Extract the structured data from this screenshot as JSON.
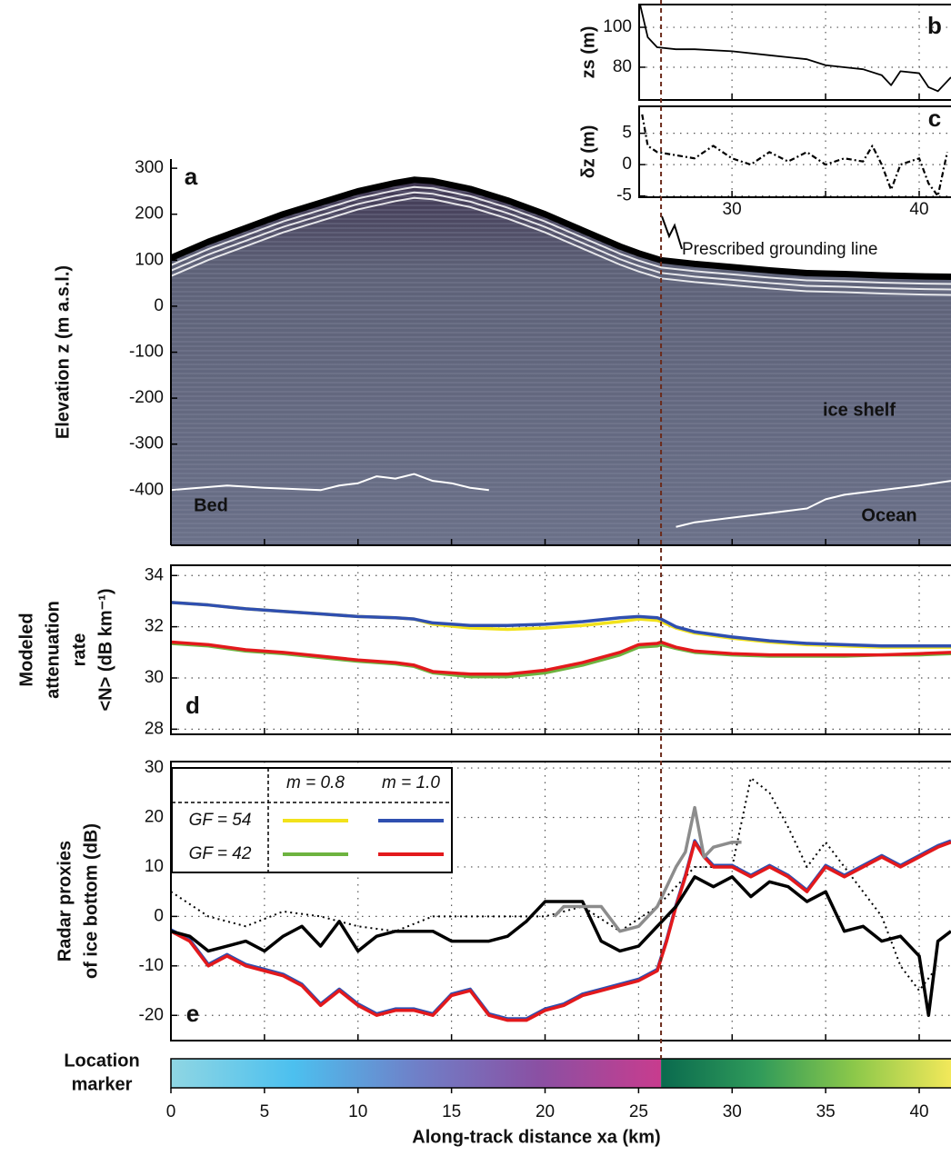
{
  "chart_data": [
    {
      "type": "line",
      "ylabel": "Elevation z (m a.s.l.)",
      "panel_label": "a",
      "annotations": [
        "Bed",
        "ice shelf",
        "Ocean"
      ],
      "xlim": [
        0,
        41.7
      ],
      "ylim": [
        -520,
        320
      ],
      "xticks": [
        5,
        10,
        15,
        20,
        25,
        30,
        35,
        40
      ],
      "yticks": [
        -400,
        -300,
        -200,
        -100,
        0,
        100,
        200,
        300
      ],
      "radargram": true,
      "series": [
        {
          "color": "#000000",
          "style": "thick",
          "x": [
            0,
            2,
            4,
            6,
            8,
            10,
            12,
            13,
            14,
            16,
            18,
            20,
            22,
            24,
            25,
            26.2,
            28,
            30,
            32,
            34,
            36,
            38,
            40,
            41.7
          ],
          "values": [
            105,
            140,
            170,
            200,
            225,
            250,
            268,
            275,
            272,
            255,
            230,
            200,
            165,
            130,
            115,
            100,
            92,
            85,
            78,
            72,
            70,
            67,
            65,
            64
          ]
        },
        {
          "color": "#ffffff",
          "style": "thin",
          "x": [
            0,
            3,
            5,
            8,
            9,
            10,
            11,
            12,
            13,
            14,
            15,
            16,
            17
          ],
          "values": [
            -400,
            -390,
            -395,
            -400,
            -390,
            -385,
            -370,
            -375,
            -365,
            -380,
            -385,
            -395,
            -400
          ]
        },
        {
          "color": "#ffffff",
          "style": "thin",
          "x": [
            27,
            28,
            30,
            32,
            34,
            35,
            36,
            38,
            40,
            41.7
          ],
          "values": [
            -480,
            -470,
            -460,
            -450,
            -440,
            -420,
            -410,
            -400,
            -390,
            -380
          ]
        }
      ]
    },
    {
      "type": "line",
      "ylabel": "zs (m)",
      "panel_label": "b",
      "xlim": [
        25.04,
        41.7
      ],
      "ylim": [
        63.6,
        111.4
      ],
      "xticks": [
        30,
        35,
        40
      ],
      "yticks": [
        80,
        100
      ],
      "grid": true,
      "series": [
        {
          "color": "#000000",
          "style": "normal",
          "x": [
            25.1,
            25.5,
            26,
            27,
            28,
            30,
            32,
            33,
            34,
            35,
            36,
            37,
            38,
            38.5,
            39,
            40,
            40.5,
            41,
            41.7
          ],
          "values": [
            111,
            95,
            90,
            89,
            89,
            88,
            86,
            85,
            84,
            81,
            80,
            79,
            76,
            71,
            78,
            77,
            70,
            68,
            75
          ]
        }
      ]
    },
    {
      "type": "line",
      "ylabel": "δz (m)",
      "panel_label": "c",
      "xlim": [
        25.04,
        41.7
      ],
      "ylim": [
        -5.2,
        9.3
      ],
      "xticks": [
        30,
        {
          "value": 35,
          "label": null
        },
        40
      ],
      "yticks": [
        -5,
        0,
        5
      ],
      "grid": true,
      "series": [
        {
          "color": "#000000",
          "style": "dashdot",
          "x": [
            25.2,
            25.5,
            26,
            27,
            28,
            29,
            30,
            31,
            32,
            33,
            34,
            35,
            36,
            37,
            37.5,
            38,
            38.5,
            39,
            40,
            40.5,
            41,
            41.5
          ],
          "values": [
            8,
            3,
            2,
            1.5,
            1,
            3,
            1,
            0,
            2,
            0.5,
            2,
            0,
            1,
            0.5,
            3,
            0,
            -4,
            0,
            1,
            -3,
            -5,
            2
          ]
        }
      ]
    },
    {
      "type": "line",
      "ylabel": [
        "Modeled",
        "attenuation",
        "rate",
        "<N> (dB km⁻¹)"
      ],
      "panel_label": "d",
      "xlim": [
        0,
        41.7
      ],
      "ylim": [
        27.8,
        34.4
      ],
      "xticks": [
        5,
        10,
        15,
        20,
        25,
        30,
        35,
        40
      ],
      "yticks": [
        28,
        30,
        32,
        34
      ],
      "grid": true,
      "x": [
        0,
        2,
        4,
        6,
        8,
        10,
        12,
        13,
        14,
        16,
        18,
        20,
        22,
        24,
        25,
        26,
        26.2,
        27,
        28,
        30,
        32,
        34,
        36,
        38,
        40,
        41.7
      ],
      "series": [
        {
          "color": "#f2e21b",
          "style": "thick",
          "values": [
            32.95,
            32.85,
            32.7,
            32.6,
            32.5,
            32.4,
            32.35,
            32.3,
            32.1,
            31.95,
            31.9,
            31.95,
            32.05,
            32.2,
            32.3,
            32.25,
            32.2,
            31.95,
            31.75,
            31.55,
            31.4,
            31.3,
            31.25,
            31.2,
            31.2,
            31.2
          ]
        },
        {
          "color": "#2f4fb0",
          "style": "thick",
          "values": [
            32.95,
            32.85,
            32.7,
            32.6,
            32.5,
            32.4,
            32.35,
            32.3,
            32.15,
            32.05,
            32.05,
            32.1,
            32.2,
            32.35,
            32.4,
            32.35,
            32.3,
            32.0,
            31.8,
            31.6,
            31.45,
            31.35,
            31.3,
            31.25,
            31.25,
            31.25
          ]
        },
        {
          "color": "#6db33f",
          "style": "thick",
          "values": [
            31.35,
            31.25,
            31.05,
            30.95,
            30.8,
            30.65,
            30.55,
            30.45,
            30.2,
            30.05,
            30.05,
            30.2,
            30.5,
            30.9,
            31.2,
            31.25,
            31.3,
            31.15,
            31.0,
            30.9,
            30.85,
            30.85,
            30.85,
            30.9,
            30.9,
            30.95
          ]
        },
        {
          "color": "#e3191c",
          "style": "thick",
          "values": [
            31.4,
            31.3,
            31.1,
            31.0,
            30.85,
            30.7,
            30.6,
            30.5,
            30.25,
            30.15,
            30.15,
            30.3,
            30.6,
            31.0,
            31.3,
            31.35,
            31.4,
            31.2,
            31.05,
            30.95,
            30.9,
            30.9,
            30.9,
            30.9,
            30.95,
            31.0
          ]
        }
      ]
    },
    {
      "type": "line",
      "ylabel": [
        "Radar proxies",
        "of ice bottom (dB)"
      ],
      "panel_label": "e",
      "legend": {
        "columns": [
          "m = 0.8",
          "m = 1.0"
        ],
        "rows": [
          "GF = 54",
          "GF = 42"
        ]
      },
      "xlim": [
        0,
        41.7
      ],
      "ylim": [
        -25.1,
        31.3
      ],
      "xticks": [
        5,
        10,
        15,
        20,
        25,
        30,
        35,
        40
      ],
      "yticks": [
        -20,
        -10,
        0,
        10,
        20,
        30
      ],
      "grid": true,
      "series": [
        {
          "color": "#000000",
          "style": "dotted",
          "x": [
            0,
            2,
            4,
            6,
            8,
            10,
            12,
            14,
            16,
            18,
            20,
            22,
            24,
            26,
            28,
            30,
            31,
            32,
            33,
            34,
            35,
            36,
            37,
            38,
            39,
            40,
            41
          ],
          "values": [
            5,
            0,
            -2,
            1,
            0,
            -2,
            -3,
            0,
            0,
            0,
            0,
            2,
            -3,
            2,
            10,
            10,
            28,
            25,
            18,
            10,
            15,
            10,
            5,
            0,
            -10,
            -15,
            -10
          ]
        },
        {
          "color": "#2f4fb0",
          "style": "thick",
          "x": [
            0,
            1,
            2,
            3,
            4,
            5,
            6,
            7,
            8,
            9,
            10,
            11,
            12,
            13,
            14,
            15,
            16,
            17,
            18,
            19,
            20,
            21,
            22,
            23,
            24,
            25,
            26,
            26.5,
            27,
            27.5,
            28,
            28.5,
            29,
            30,
            31,
            32,
            33,
            34,
            35,
            36,
            37,
            38,
            39,
            40,
            41,
            41.7
          ],
          "values": [
            -2.7,
            -4.7,
            -9.7,
            -7.7,
            -9.7,
            -10.7,
            -11.7,
            -13.7,
            -17.7,
            -14.7,
            -17.7,
            -19.7,
            -18.7,
            -18.7,
            -19.7,
            -15.7,
            -14.7,
            -19.7,
            -20.7,
            -20.7,
            -18.7,
            -17.7,
            -15.7,
            -14.7,
            -13.7,
            -12.7,
            -10.7,
            -4.7,
            2.3,
            8.3,
            15.3,
            12.3,
            10.3,
            10.3,
            8.3,
            10.3,
            8.3,
            5.3,
            10.3,
            8.3,
            10.3,
            12.3,
            10.3,
            12.3,
            14.3,
            15.3
          ]
        },
        {
          "color": "#e3191c",
          "style": "thick",
          "x": [
            0,
            1,
            2,
            3,
            4,
            5,
            6,
            7,
            8,
            9,
            10,
            11,
            12,
            13,
            14,
            15,
            16,
            17,
            18,
            19,
            20,
            21,
            22,
            23,
            24,
            25,
            26,
            26.5,
            27,
            27.5,
            28,
            28.5,
            29,
            30,
            31,
            32,
            33,
            34,
            35,
            36,
            37,
            38,
            39,
            40,
            41,
            41.7
          ],
          "values": [
            -3,
            -5,
            -10,
            -8,
            -10,
            -11,
            -12,
            -14,
            -18,
            -15,
            -18,
            -20,
            -19,
            -19,
            -20,
            -16,
            -15,
            -20,
            -21,
            -21,
            -19,
            -18,
            -16,
            -15,
            -14,
            -13,
            -11,
            -5,
            2,
            8,
            15,
            12,
            10,
            10,
            8,
            10,
            8,
            5,
            10,
            8,
            10,
            12,
            10,
            12,
            14,
            15
          ]
        },
        {
          "color": "#000000",
          "style": "thick",
          "x": [
            0,
            1,
            2,
            3,
            4,
            5,
            6,
            7,
            8,
            9,
            10,
            11,
            12,
            13,
            14,
            15,
            16,
            17,
            18,
            19,
            20,
            21,
            22,
            23,
            24,
            25,
            26,
            27,
            27.5,
            28,
            29,
            30,
            31,
            32,
            33,
            34,
            35,
            36,
            37,
            38,
            39,
            40,
            40.5,
            41,
            41.7
          ],
          "values": [
            -3,
            -4,
            -7,
            -6,
            -5,
            -7,
            -4,
            -2,
            -6,
            -1,
            -7,
            -4,
            -3,
            -3,
            -3,
            -5,
            -5,
            -5,
            -4,
            -1,
            3,
            3,
            3,
            -5,
            -7,
            -6,
            -2,
            2,
            5,
            8,
            6,
            8,
            4,
            7,
            6,
            3,
            5,
            -3,
            -2,
            -5,
            -4,
            -8,
            -20,
            -5,
            -3
          ]
        },
        {
          "color": "#8c8c8c",
          "style": "thick",
          "x": [
            20.5,
            21,
            22,
            23,
            24,
            25,
            26,
            27,
            27.5,
            28,
            28.5,
            29,
            30,
            30.5
          ],
          "values": [
            0,
            2,
            2,
            2,
            -3,
            -2,
            2,
            10,
            13,
            22,
            12,
            14,
            15,
            15
          ]
        }
      ]
    },
    {
      "type": "colorbar",
      "title": [
        "Location",
        "marker"
      ],
      "xlabel": "Along-track distance xa (km)",
      "annotation": "Prescribed grounding line",
      "grounding_line": 26.2,
      "xlim": [
        0,
        41.7
      ],
      "xticks": [
        0,
        5,
        10,
        15,
        20,
        25,
        30,
        35,
        40
      ],
      "colors_grounded": [
        "#8fd6e3",
        "#4cc0ef",
        "#6f80c8",
        "#8a50a3",
        "#c83c8e"
      ],
      "colors_shelf": [
        "#0a6a4e",
        "#2f9a5a",
        "#8cc84a",
        "#f2e85a"
      ]
    }
  ]
}
